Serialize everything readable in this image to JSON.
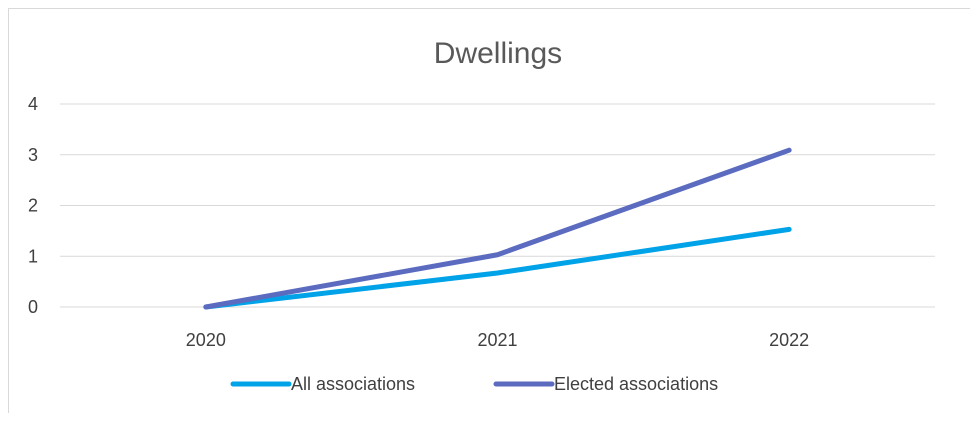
{
  "chart_data": {
    "type": "line",
    "title": "Dwellings",
    "xlabel": "",
    "ylabel": "",
    "categories": [
      "2020",
      "2021",
      "2022"
    ],
    "ylim": [
      0,
      4
    ],
    "yticks": [
      "0",
      "1",
      "2",
      "3",
      "4"
    ],
    "grid": true,
    "legend_position": "bottom",
    "series": [
      {
        "name": "All associations",
        "values": [
          0,
          0.67,
          1.53
        ],
        "color": "#00a2e8"
      },
      {
        "name": "Elected associations",
        "values": [
          0,
          1.03,
          3.09
        ],
        "color": "#5b6bbf"
      }
    ]
  }
}
